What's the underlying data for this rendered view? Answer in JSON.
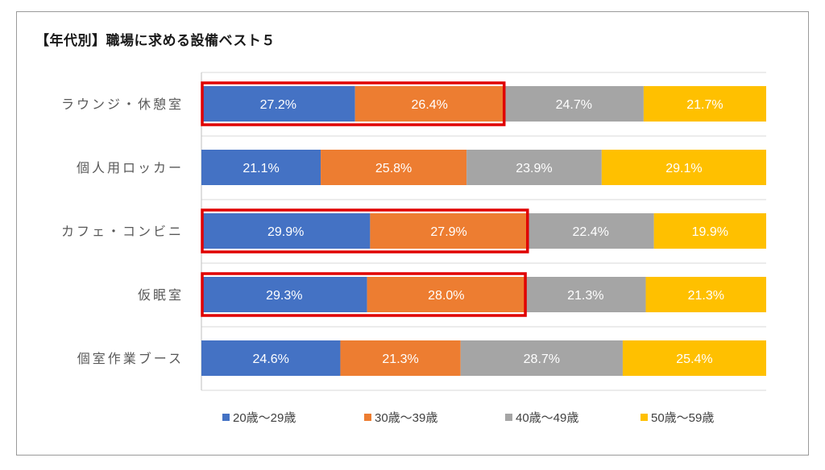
{
  "chart_data": {
    "type": "bar",
    "orientation": "horizontal",
    "stacked": "percent",
    "title": "【年代別】職場に求める設備ベスト５",
    "categories": [
      "ラウンジ・休憩室",
      "個人用ロッカー",
      "カフェ・コンビニ",
      "仮眠室",
      "個室作業ブース"
    ],
    "series": [
      {
        "name": "20歳〜29歳",
        "color": "#4472c4",
        "values": [
          27.2,
          21.1,
          29.9,
          29.3,
          24.6
        ]
      },
      {
        "name": "30歳〜39歳",
        "color": "#ed7d31",
        "values": [
          26.4,
          25.8,
          27.9,
          28.0,
          21.3
        ]
      },
      {
        "name": "40歳〜49歳",
        "color": "#a5a5a5",
        "values": [
          24.7,
          23.9,
          22.4,
          21.3,
          28.7
        ]
      },
      {
        "name": "50歳〜59歳",
        "color": "#ffc000",
        "values": [
          21.7,
          29.1,
          19.9,
          21.3,
          25.4
        ]
      }
    ],
    "value_suffix": "%",
    "highlighted_categories": [
      0,
      2,
      3
    ],
    "highlight_color": "#e00000",
    "grid": true,
    "legend_position": "bottom"
  }
}
